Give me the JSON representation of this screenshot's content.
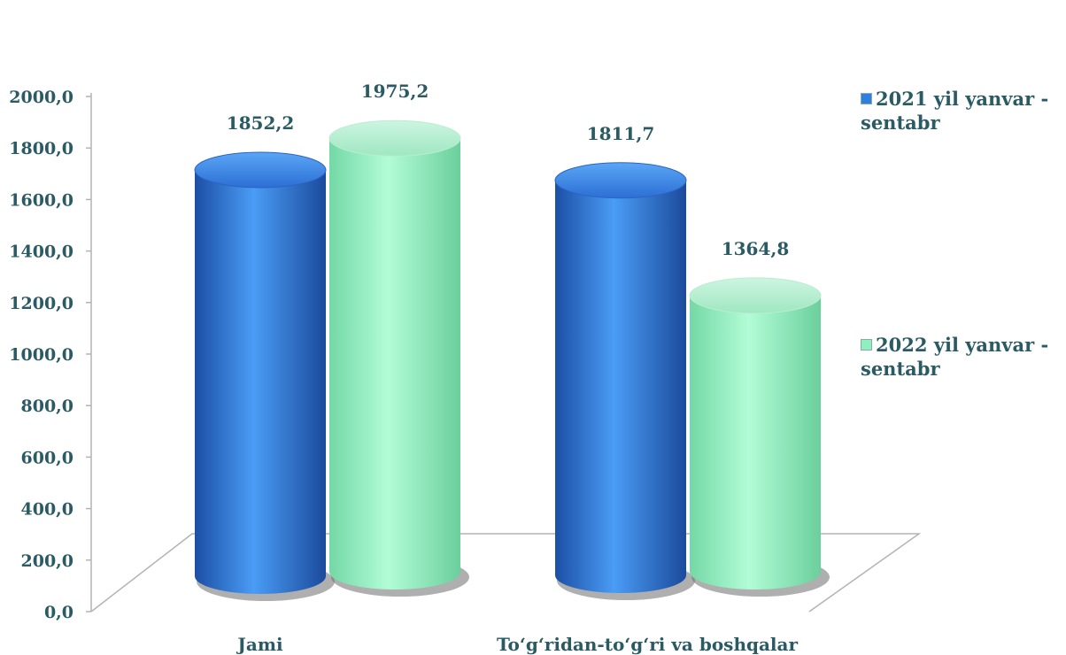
{
  "chart_data": {
    "type": "bar",
    "categories": [
      "Jami",
      "To‘g‘ridan-to‘g‘ri va boshqalar"
    ],
    "series": [
      {
        "name": "2021 yil yanvar - sentabr",
        "values": [
          1852.2,
          1811.7
        ],
        "color": "#2f7fe0"
      },
      {
        "name": "2022 yil yanvar - sentabr",
        "values": [
          1975.2,
          1364.8
        ],
        "color": "#8ff0bf"
      }
    ],
    "data_labels": [
      [
        "1852,2",
        "1811,7"
      ],
      [
        "1975,2",
        "1364,8"
      ]
    ],
    "y_ticks": [
      "0,0",
      "200,0",
      "400,0",
      "600,0",
      "800,0",
      "1000,0",
      "1200,0",
      "1400,0",
      "1600,0",
      "1800,0",
      "2000,0"
    ],
    "ylim": [
      0,
      2000
    ],
    "grid": false,
    "legend_position": "right"
  },
  "legend": [
    {
      "line1": "2021 yil yanvar -",
      "line2": "sentabr",
      "color": "#2f7fe0"
    },
    {
      "line1": "2022 yil yanvar -",
      "line2": "sentabr",
      "color": "#8ff0bf"
    }
  ]
}
